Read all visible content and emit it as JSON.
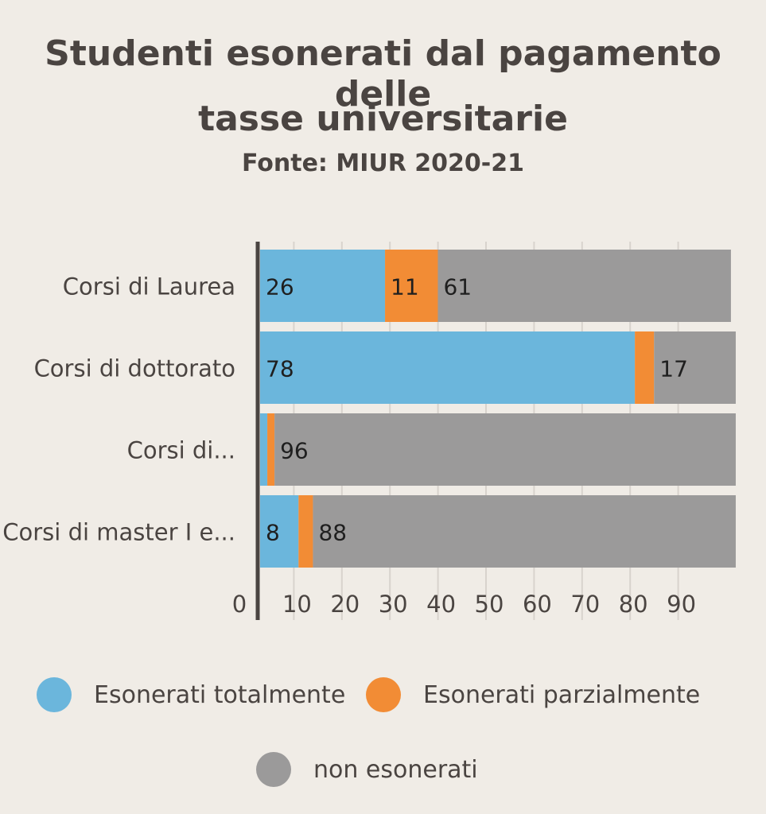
{
  "title_line1": "Studenti esonerati dal pagamento delle",
  "title_line2": "tasse universitarie",
  "subtitle": "Fonte: MIUR 2020-21",
  "colors": {
    "background": "#f0ece6",
    "totally": "#6bb6dc",
    "partially": "#f28c35",
    "not_exempt": "#9b9a9a",
    "text": "#4a4441",
    "grid": "#d8d3cd",
    "axis": "#4a4441"
  },
  "chart_data": {
    "type": "bar",
    "orientation": "horizontal",
    "stacked": true,
    "categories": [
      "Corsi di Laurea",
      "Corsi di dottorato",
      "Corsi di...",
      "Corsi di master I e..."
    ],
    "series": [
      {
        "name": "Esonerati totalmente",
        "color": "#6bb6dc",
        "values": [
          26,
          78,
          1.5,
          8
        ],
        "labels": [
          "26",
          "78",
          "",
          "8"
        ]
      },
      {
        "name": "Esonerati parzialmente",
        "color": "#f28c35",
        "values": [
          11,
          4,
          1.5,
          3
        ],
        "labels": [
          "11",
          "",
          "",
          ""
        ]
      },
      {
        "name": "non esonerati",
        "color": "#9b9a9a",
        "values": [
          61,
          17,
          96,
          88
        ],
        "labels": [
          "61",
          "17",
          "96",
          "88"
        ]
      }
    ],
    "x_ticks": [
      "0",
      "10",
      "20",
      "30",
      "40",
      "50",
      "60",
      "70",
      "80",
      "90"
    ],
    "xlim": [
      0,
      100
    ],
    "grid": true,
    "legend_position": "bottom"
  }
}
